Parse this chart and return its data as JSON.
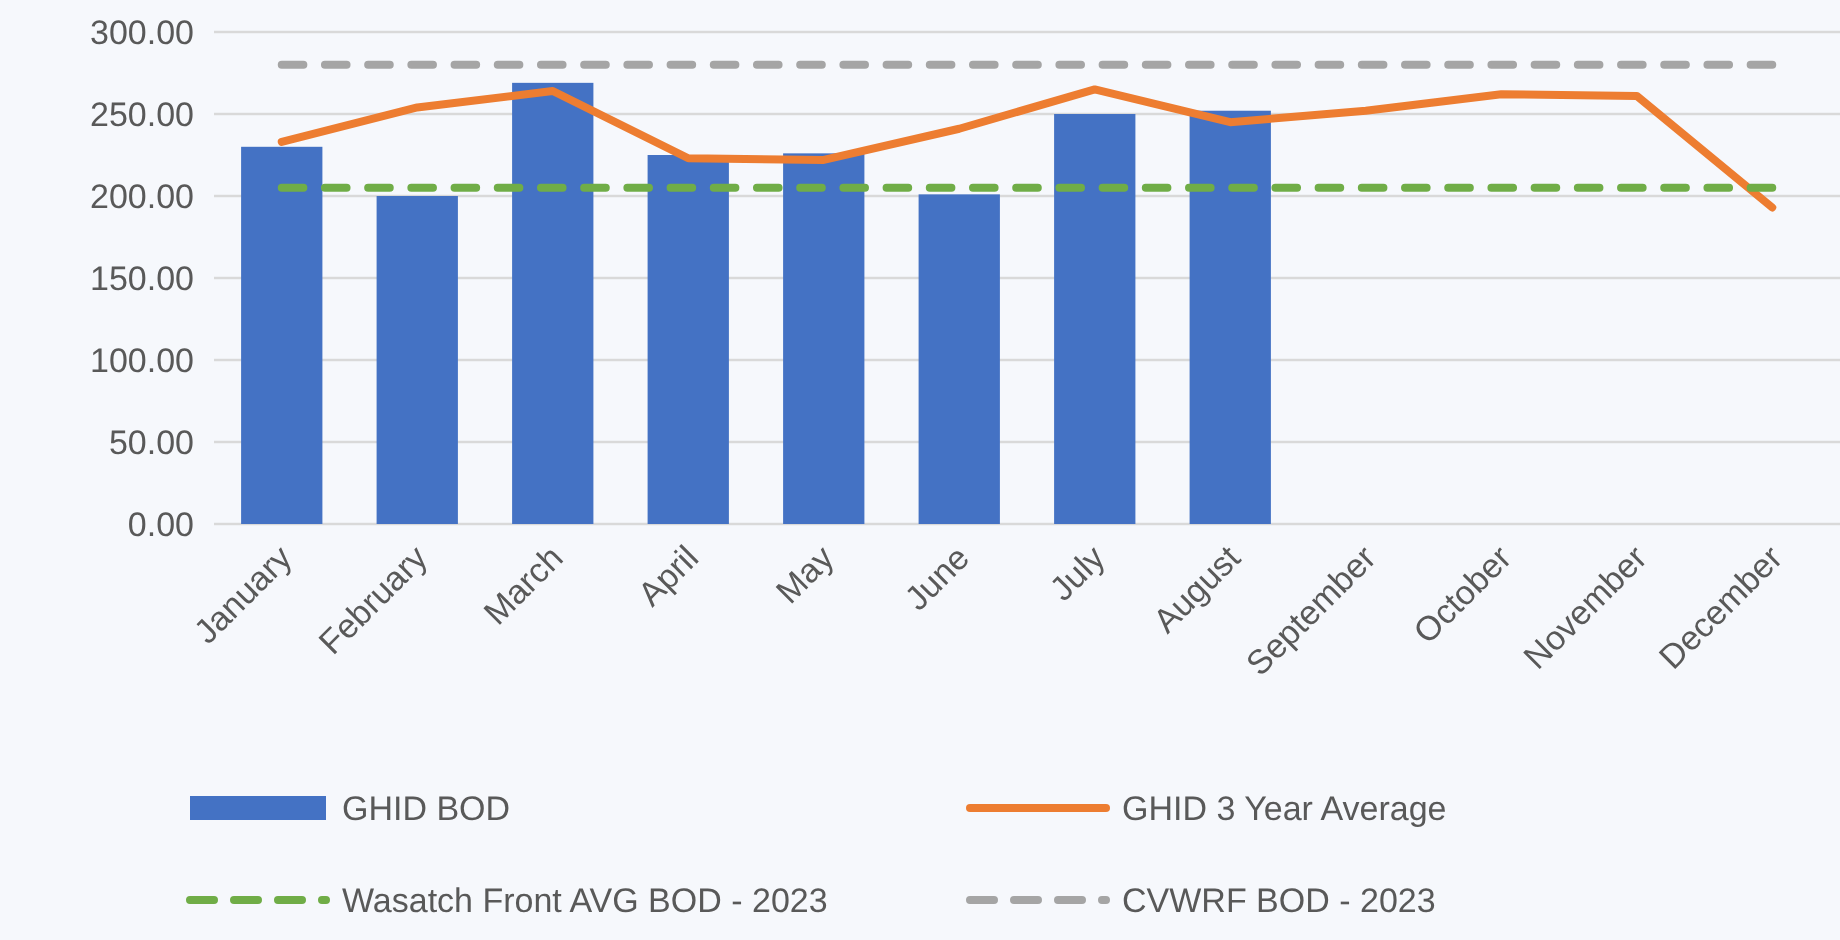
{
  "chart_data": {
    "type": "bar",
    "categories": [
      "January",
      "February",
      "March",
      "April",
      "May",
      "June",
      "July",
      "August",
      "September",
      "October",
      "November",
      "December"
    ],
    "ylim": [
      0,
      300
    ],
    "yticks": [
      {
        "value": 0,
        "label": "0.00"
      },
      {
        "value": 50,
        "label": "50.00"
      },
      {
        "value": 100,
        "label": "100.00"
      },
      {
        "value": 150,
        "label": "150.00"
      },
      {
        "value": 200,
        "label": "200.00"
      },
      {
        "value": 250,
        "label": "250.00"
      },
      {
        "value": 300,
        "label": "300.00"
      }
    ],
    "grid": "y",
    "legend": "bottom",
    "series": [
      {
        "name": "GHID BOD",
        "color": "#4472c4",
        "values": [
          230,
          200,
          269,
          225,
          226,
          201,
          250,
          252,
          null,
          null,
          null,
          null
        ]
      },
      {
        "name": "GHID 3 Year Average",
        "type": "line",
        "color": "#ed7d31",
        "line_style": "solid",
        "values": [
          233,
          254,
          264,
          223,
          222,
          241,
          265,
          245,
          252,
          262,
          261,
          193
        ]
      },
      {
        "name": "Wasatch Front AVG BOD - 2023",
        "type": "line",
        "color": "#70ad47",
        "line_style": "dashed",
        "values": [
          205,
          205,
          205,
          205,
          205,
          205,
          205,
          205,
          205,
          205,
          205,
          205
        ]
      },
      {
        "name": "CVWRF BOD - 2023",
        "type": "line",
        "color": "#a5a5a5",
        "line_style": "dashed",
        "values": [
          280,
          280,
          280,
          280,
          280,
          280,
          280,
          280,
          280,
          280,
          280,
          280
        ]
      }
    ]
  }
}
